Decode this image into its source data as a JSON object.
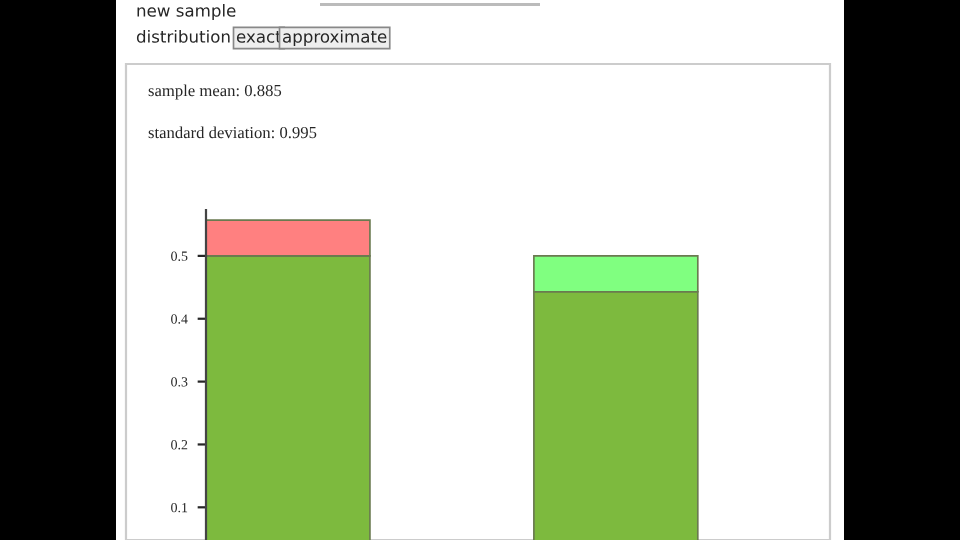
{
  "chart_data": {
    "type": "bar",
    "stacked": true,
    "categories": [
      null,
      null
    ],
    "series": [
      {
        "colors": [
          "#7dba3e",
          "#7dba3e"
        ],
        "values": [
          0.5,
          0.443
        ]
      },
      {
        "colors": [
          "#ff8080",
          "#80ff80"
        ],
        "values": [
          0.057,
          0.057
        ]
      }
    ],
    "ylim": [
      0.048,
      0.573
    ],
    "yticks": [
      0.1,
      0.2,
      0.3,
      0.4,
      0.5
    ],
    "grid": false,
    "legend": false,
    "annotations": [
      "new sample",
      "distribution",
      "exact",
      "approximate",
      "sample mean: 0.885",
      "standard deviation: 0.995"
    ]
  }
}
